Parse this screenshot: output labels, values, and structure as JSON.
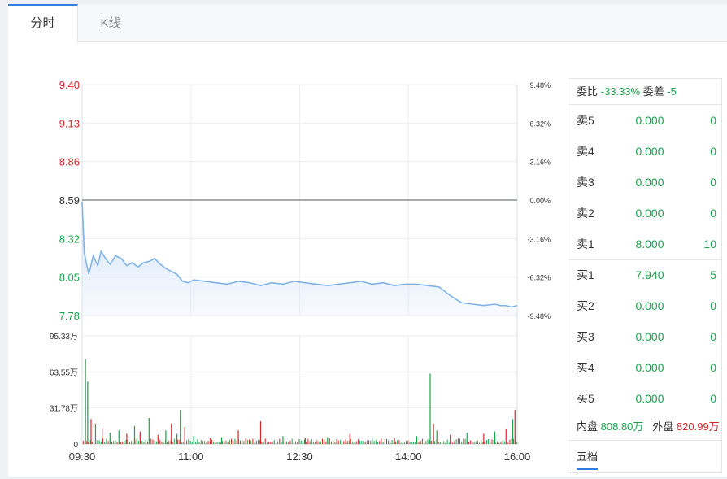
{
  "tabs": [
    {
      "label": "分时",
      "active": true
    },
    {
      "label": "K线",
      "active": false
    }
  ],
  "colors": {
    "up": "#d62728",
    "down": "#1aa34a",
    "line": "#7fb3e8",
    "fill": "#cfe2f7",
    "accent": "#2f7de1"
  },
  "chart_data": {
    "type": "line",
    "price_axis": {
      "ticks": [
        "9.40",
        "9.13",
        "8.86",
        "8.59",
        "8.32",
        "8.05",
        "7.78"
      ],
      "tick_colors": [
        "up",
        "up",
        "up",
        "neutral",
        "down",
        "down",
        "down"
      ],
      "ylim": [
        7.78,
        9.4
      ],
      "prev_close": 8.59
    },
    "pct_axis": {
      "ticks": [
        "9.48%",
        "6.32%",
        "3.16%",
        "0.00%",
        "-3.16%",
        "-6.32%",
        "-9.48%"
      ]
    },
    "x_ticks": [
      "09:30",
      "11:00",
      "12:30",
      "14:00",
      "16:00"
    ],
    "price_series": {
      "name": "",
      "t": [
        0,
        2,
        4,
        6,
        10,
        14,
        17,
        21,
        25,
        30,
        35,
        40,
        45,
        50,
        55,
        60,
        65,
        70,
        75,
        80,
        85,
        90,
        95,
        100,
        110,
        120,
        130,
        140,
        150,
        160,
        170,
        180,
        190,
        200,
        210,
        220,
        230,
        240,
        250,
        260,
        270,
        280,
        290,
        300,
        310,
        320,
        330,
        340,
        350,
        360,
        370,
        375,
        380,
        385,
        390
      ],
      "price": [
        8.58,
        8.22,
        8.14,
        8.07,
        8.2,
        8.13,
        8.23,
        8.18,
        8.14,
        8.2,
        8.18,
        8.13,
        8.15,
        8.12,
        8.15,
        8.16,
        8.18,
        8.14,
        8.11,
        8.09,
        8.07,
        8.02,
        8.01,
        8.03,
        8.02,
        8.01,
        8.0,
        8.02,
        8.01,
        7.99,
        8.01,
        8.0,
        8.02,
        8.01,
        8.0,
        7.99,
        8.0,
        8.01,
        8.02,
        8.0,
        8.01,
        7.99,
        8.0,
        8.0,
        7.99,
        7.98,
        7.92,
        7.87,
        7.86,
        7.85,
        7.86,
        7.85,
        7.85,
        7.84,
        7.85
      ]
    },
    "volume_axis": {
      "ticks": [
        "95.33万",
        "63.55万",
        "31.78万",
        "0"
      ],
      "ylim": [
        0,
        95.33
      ]
    },
    "volume_spikes": {
      "t": [
        3,
        5,
        8,
        12,
        18,
        25,
        33,
        40,
        47,
        52,
        60,
        68,
        75,
        80,
        85,
        88,
        92,
        100,
        115,
        125,
        140,
        160,
        180,
        200,
        220,
        240,
        260,
        280,
        300,
        312,
        315,
        318,
        330,
        345,
        360,
        370,
        380,
        386,
        388
      ],
      "vol": [
        75,
        55,
        22,
        18,
        14,
        10,
        12,
        9,
        16,
        11,
        23,
        8,
        12,
        18,
        9,
        30,
        15,
        7,
        5,
        6,
        12,
        20,
        7,
        5,
        6,
        9,
        6,
        5,
        7,
        62,
        18,
        12,
        8,
        10,
        9,
        11,
        13,
        22,
        30
      ],
      "dir": [
        "down",
        "down",
        "up",
        "down",
        "up",
        "down",
        "down",
        "up",
        "down",
        "up",
        "down",
        "up",
        "down",
        "up",
        "down",
        "down",
        "up",
        "down",
        "up",
        "down",
        "up",
        "up",
        "down",
        "up",
        "down",
        "up",
        "down",
        "up",
        "down",
        "down",
        "up",
        "down",
        "up",
        "down",
        "up",
        "down",
        "up",
        "down",
        "up"
      ]
    }
  },
  "order_book": {
    "weibi_label": "委比",
    "weibi_value": "-33.33%",
    "weicha_label": "委差",
    "weicha_value": "-5",
    "sell": [
      {
        "label": "卖5",
        "price": "0.000",
        "vol": "0"
      },
      {
        "label": "卖4",
        "price": "0.000",
        "vol": "0"
      },
      {
        "label": "卖3",
        "price": "0.000",
        "vol": "0"
      },
      {
        "label": "卖2",
        "price": "0.000",
        "vol": "0"
      },
      {
        "label": "卖1",
        "price": "8.000",
        "vol": "10"
      }
    ],
    "buy": [
      {
        "label": "买1",
        "price": "7.940",
        "vol": "5"
      },
      {
        "label": "买2",
        "price": "0.000",
        "vol": "0"
      },
      {
        "label": "买3",
        "price": "0.000",
        "vol": "0"
      },
      {
        "label": "买4",
        "price": "0.000",
        "vol": "0"
      },
      {
        "label": "买5",
        "price": "0.000",
        "vol": "0"
      }
    ],
    "neipan_label": "内盘",
    "neipan_value": "808.80万",
    "waipan_label": "外盘",
    "waipan_value": "820.99万",
    "wudang_label": "五档"
  }
}
